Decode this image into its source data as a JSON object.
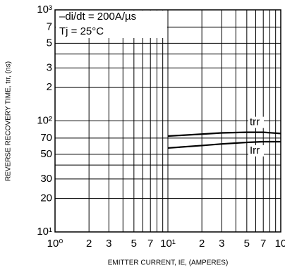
{
  "chart_data": {
    "type": "line",
    "annotations": [
      "–di/dt = 200A/µs",
      "Tj = 25°C"
    ],
    "x_label": "EMITTER CURRENT, IE, (AMPERES)",
    "y_label": "REVERSE RECOVERY TIME, trr, (ns)",
    "x_log": true,
    "y_log": true,
    "grid": true,
    "xlim": [
      1,
      100
    ],
    "ylim": [
      10,
      1000
    ],
    "xticks": [
      {
        "value": 1,
        "label": "10⁰"
      },
      2,
      3,
      5,
      7,
      {
        "value": 10,
        "label": "10¹"
      },
      {
        "value": 20,
        "label": "2"
      },
      {
        "value": 30,
        "label": "3"
      },
      {
        "value": 50,
        "label": "5"
      },
      {
        "value": 70,
        "label": "7"
      },
      {
        "value": 100,
        "label": "10"
      }
    ],
    "yticks": [
      {
        "value": 1000,
        "label": "10³"
      },
      {
        "value": 700,
        "label": "7"
      },
      {
        "value": 500,
        "label": "5"
      },
      {
        "value": 300,
        "label": "3"
      },
      {
        "value": 200,
        "label": "2"
      },
      {
        "value": 100,
        "label": "10²"
      },
      70,
      50,
      30,
      20,
      {
        "value": 10,
        "label": "10¹"
      }
    ],
    "xgrid": [
      4,
      6,
      8,
      9,
      40,
      60,
      80,
      90
    ],
    "ygrid": [
      400,
      40
    ],
    "x": [
      10,
      20,
      30,
      50,
      70,
      100
    ],
    "series": [
      {
        "name": "trr",
        "color": "#000000",
        "values": [
          73,
          76,
          78,
          79,
          79,
          77
        ]
      },
      {
        "name": "Irr",
        "color": "#000000",
        "values": [
          57,
          60,
          62,
          64,
          65,
          65
        ]
      }
    ]
  }
}
